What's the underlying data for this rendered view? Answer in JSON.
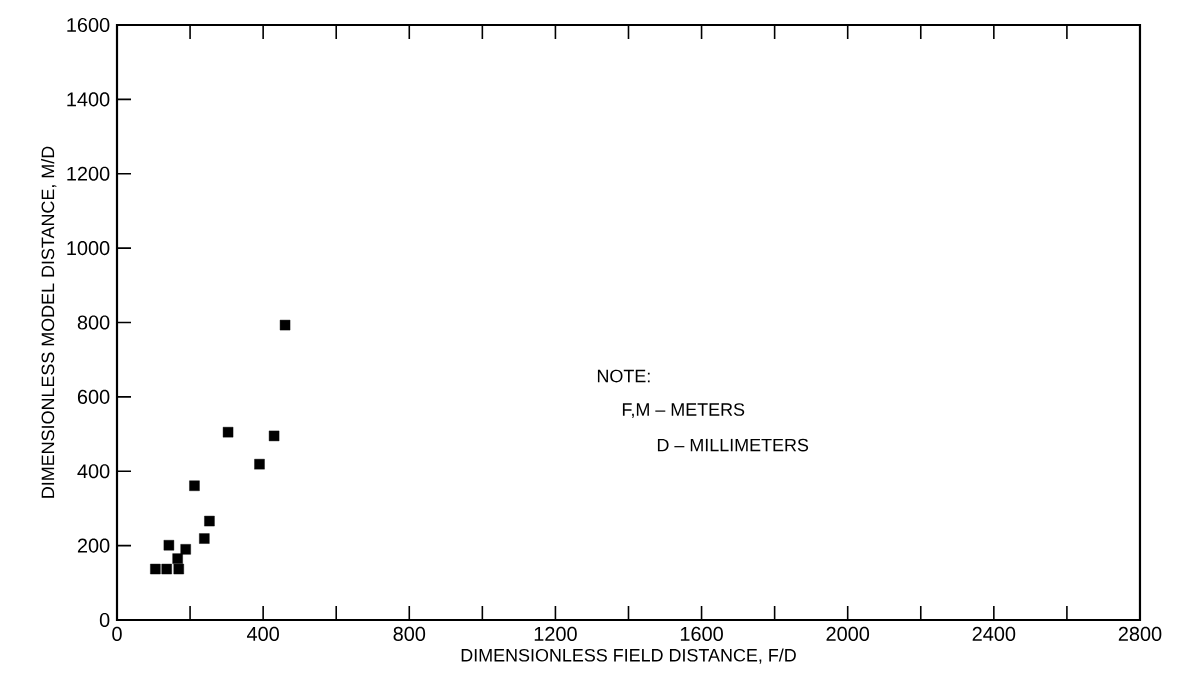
{
  "chart_data": {
    "type": "scatter",
    "xlabel": "DIMENSIONLESS FIELD DISTANCE, F/D",
    "ylabel": "DIMENSIONLESS MODEL DISTANCE, M/D",
    "x": [
      105,
      136,
      169,
      166,
      142,
      188,
      212,
      239,
      253,
      304,
      390,
      430,
      460
    ],
    "values": [
      137,
      137,
      137,
      165,
      201,
      190,
      361,
      219,
      266,
      505,
      419,
      495,
      793
    ],
    "color": "#000000",
    "marker": "square",
    "xlim": [
      0,
      2800
    ],
    "ylim": [
      0,
      1600
    ],
    "xticks": [
      0,
      400,
      800,
      1200,
      1600,
      2000,
      2400,
      2800
    ],
    "yticks": [
      0,
      200,
      400,
      600,
      800,
      1000,
      1200,
      1400,
      1600
    ],
    "grid": false,
    "annotations": [
      "NOTE:",
      "F,M – METERS",
      "D – MILLIMETERS"
    ]
  }
}
